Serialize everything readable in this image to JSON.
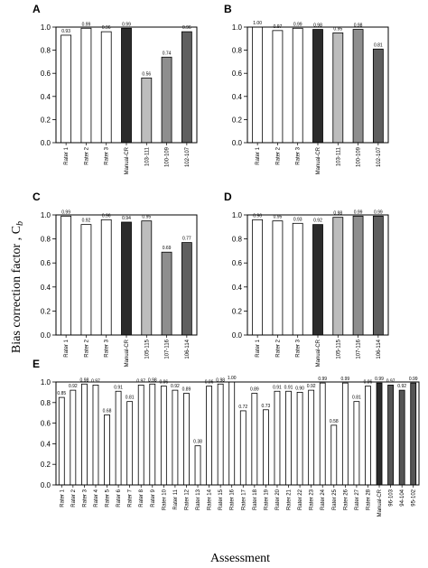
{
  "figure": {
    "ylabel": "Bias correction factor , C",
    "ylabel_sub": "b",
    "xlabel": "Assessment"
  },
  "chart_data": [
    {
      "panel": "A",
      "type": "bar",
      "ylim": [
        0.0,
        1.0
      ],
      "yticks": [
        "0.0",
        "0.2",
        "0.4",
        "0.6",
        "0.8",
        "1.0"
      ],
      "categories": [
        "Rater 1",
        "Rater 2",
        "Rater 3",
        "Manual-CR",
        "103-111",
        "100-109",
        "102-107"
      ],
      "values": [
        0.93,
        0.99,
        0.96,
        0.99,
        0.56,
        0.74,
        0.96
      ],
      "labels": [
        "0.93",
        "0.99",
        "0.96",
        "0.99",
        "0.56",
        "0.74",
        "0.96"
      ],
      "fills": [
        "#ffffff",
        "#ffffff",
        "#ffffff",
        "#2b2b2b",
        "#bdbdbd",
        "#8e8e8e",
        "#5f5f5f"
      ]
    },
    {
      "panel": "B",
      "type": "bar",
      "ylim": [
        0.0,
        1.0
      ],
      "yticks": [
        "0.0",
        "0.2",
        "0.4",
        "0.6",
        "0.8",
        "1.0"
      ],
      "categories": [
        "Rater 1",
        "Rater 2",
        "Rater 3",
        "Manual-CR",
        "103-111",
        "100-109",
        "102-107"
      ],
      "values": [
        1.0,
        0.97,
        0.99,
        0.98,
        0.95,
        0.98,
        0.81
      ],
      "labels": [
        "1.00",
        "0.97",
        "0.99",
        "0.98",
        "0.95",
        "0.98",
        "0.81"
      ],
      "fills": [
        "#ffffff",
        "#ffffff",
        "#ffffff",
        "#2b2b2b",
        "#bdbdbd",
        "#8e8e8e",
        "#5f5f5f"
      ]
    },
    {
      "panel": "C",
      "type": "bar",
      "ylim": [
        0.0,
        1.0
      ],
      "yticks": [
        "0.0",
        "0.2",
        "0.4",
        "0.6",
        "0.8",
        "1.0"
      ],
      "categories": [
        "Rater 1",
        "Rater 2",
        "Rater 3",
        "Manual-CR",
        "105-115",
        "107-116",
        "106-114"
      ],
      "values": [
        0.99,
        0.92,
        0.96,
        0.94,
        0.95,
        0.69,
        0.77
      ],
      "labels": [
        "0.99",
        "0.92",
        "0.96",
        "0.94",
        "0.95",
        "0.69",
        "0.77"
      ],
      "fills": [
        "#ffffff",
        "#ffffff",
        "#ffffff",
        "#2b2b2b",
        "#bdbdbd",
        "#8e8e8e",
        "#5f5f5f"
      ]
    },
    {
      "panel": "D",
      "type": "bar",
      "ylim": [
        0.0,
        1.0
      ],
      "yticks": [
        "0.0",
        "0.2",
        "0.4",
        "0.6",
        "0.8",
        "1.0"
      ],
      "categories": [
        "Rater 1",
        "Rater 2",
        "Rater 3",
        "Manual-CR",
        "105-115",
        "107-116",
        "106-114"
      ],
      "values": [
        0.96,
        0.95,
        0.93,
        0.92,
        0.98,
        0.99,
        0.99
      ],
      "labels": [
        "0.96",
        "0.95",
        "0.93",
        "0.92",
        "0.98",
        "0.99",
        "0.99"
      ],
      "fills": [
        "#ffffff",
        "#ffffff",
        "#ffffff",
        "#2b2b2b",
        "#bdbdbd",
        "#8e8e8e",
        "#5f5f5f"
      ]
    },
    {
      "panel": "E",
      "type": "bar",
      "ylim": [
        0.0,
        1.0
      ],
      "yticks": [
        "0.0",
        "0.2",
        "0.4",
        "0.6",
        "0.8",
        "1.0"
      ],
      "categories": [
        "Rater 1",
        "Rater 2",
        "Rater 3",
        "Rater 4",
        "Rater 5",
        "Rater 6",
        "Rater 7",
        "Rater 8",
        "Rater 9",
        "Rater 10",
        "Rater 11",
        "Rater 12",
        "Rater 13",
        "Rater 14",
        "Rater 15",
        "Rater 16",
        "Rater 17",
        "Rater 18",
        "Rater 19",
        "Rater 20",
        "Rater 21",
        "Rater 22",
        "Rater 23",
        "Rater 24",
        "Rater 25",
        "Rater 26",
        "Rater 27",
        "Rater 28",
        "Manual-CR",
        "96-103",
        "94-104",
        "95-102"
      ],
      "values": [
        0.85,
        0.92,
        0.98,
        0.97,
        0.68,
        0.91,
        0.81,
        0.97,
        0.98,
        0.96,
        0.92,
        0.89,
        0.38,
        0.96,
        0.98,
        1.0,
        0.72,
        0.89,
        0.73,
        0.91,
        0.91,
        0.9,
        0.92,
        0.99,
        0.58,
        0.99,
        0.81,
        0.96,
        0.99,
        0.97,
        0.92,
        0.99
      ],
      "labels": [
        "0.85",
        "0.92",
        "0.98",
        "0.97",
        "0.68",
        "0.91",
        "0.81",
        "0.97",
        "0.98",
        "0.96",
        "0.92",
        "0.89",
        "0.38",
        "0.96",
        "0.98",
        "1.00",
        "0.72",
        "0.89",
        "0.73",
        "0.91",
        "0.91",
        "0.90",
        "0.92",
        "0.99",
        "0.58",
        "0.99",
        "0.81",
        "0.96",
        "0.99",
        "0.97",
        "0.92",
        "0.99"
      ],
      "fills": [
        "#ffffff",
        "#ffffff",
        "#ffffff",
        "#ffffff",
        "#ffffff",
        "#ffffff",
        "#ffffff",
        "#ffffff",
        "#ffffff",
        "#ffffff",
        "#ffffff",
        "#ffffff",
        "#ffffff",
        "#ffffff",
        "#ffffff",
        "#ffffff",
        "#ffffff",
        "#ffffff",
        "#ffffff",
        "#ffffff",
        "#ffffff",
        "#ffffff",
        "#ffffff",
        "#ffffff",
        "#ffffff",
        "#ffffff",
        "#ffffff",
        "#ffffff",
        "#2b2b2b",
        "#555555",
        "#555555",
        "#555555"
      ]
    }
  ]
}
